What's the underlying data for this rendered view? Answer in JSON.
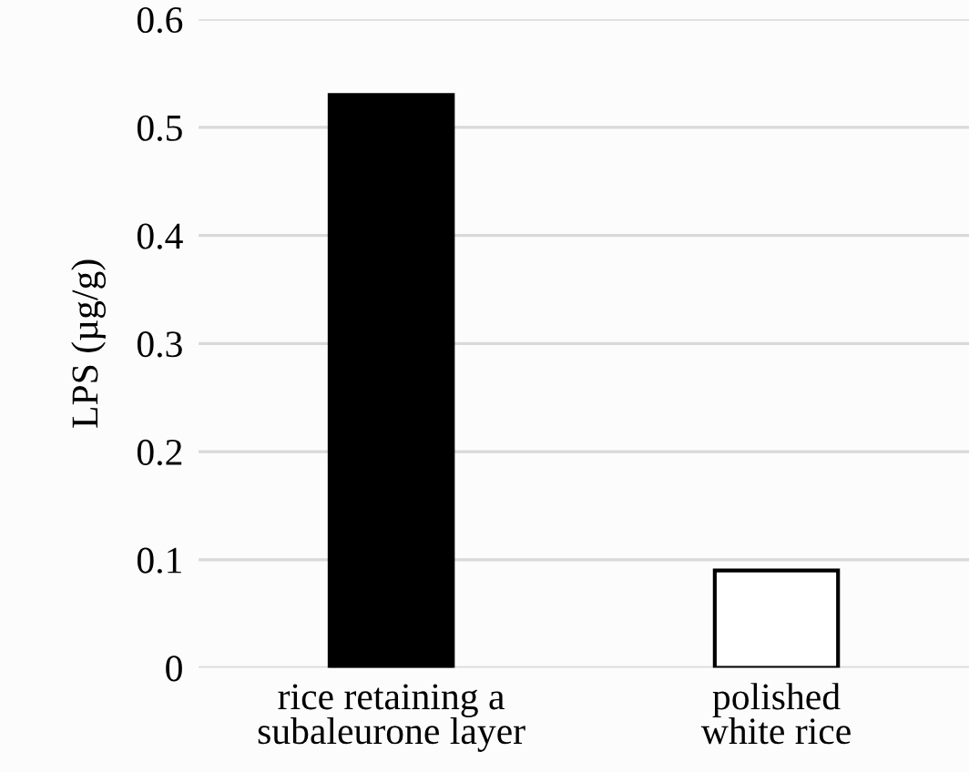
{
  "chart_data": {
    "type": "bar",
    "ylabel": "LPS (µg/g)",
    "categories": [
      "rice retaining a\nsubaleurone layer",
      "polished\nwhite rice"
    ],
    "values": [
      0.53,
      0.09
    ],
    "colors": [
      "#000000",
      "#ffffff"
    ],
    "ylim": [
      0,
      0.6
    ],
    "yticks": [
      0,
      0.1,
      0.2,
      0.3,
      0.4,
      0.5,
      0.6
    ],
    "grid": "y"
  }
}
